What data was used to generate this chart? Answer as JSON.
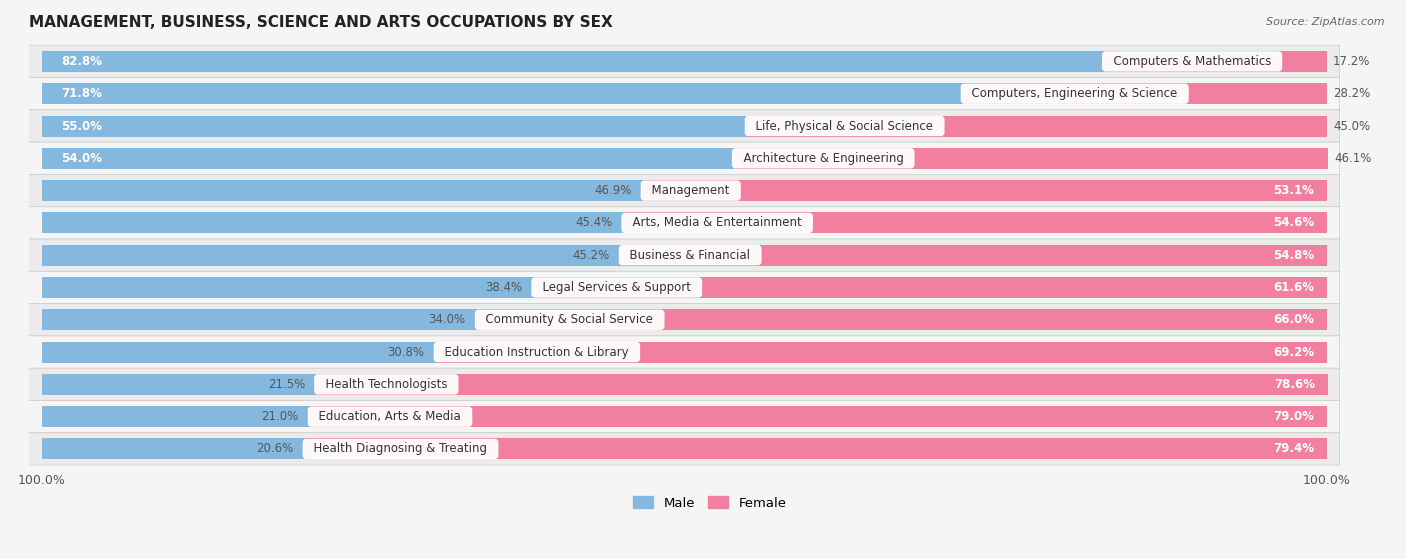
{
  "title": "MANAGEMENT, BUSINESS, SCIENCE AND ARTS OCCUPATIONS BY SEX",
  "source": "Source: ZipAtlas.com",
  "categories": [
    "Computers & Mathematics",
    "Computers, Engineering & Science",
    "Life, Physical & Social Science",
    "Architecture & Engineering",
    "Management",
    "Arts, Media & Entertainment",
    "Business & Financial",
    "Legal Services & Support",
    "Community & Social Service",
    "Education Instruction & Library",
    "Health Technologists",
    "Education, Arts & Media",
    "Health Diagnosing & Treating"
  ],
  "male_pct": [
    82.8,
    71.8,
    55.0,
    54.0,
    46.9,
    45.4,
    45.2,
    38.4,
    34.0,
    30.8,
    21.5,
    21.0,
    20.6
  ],
  "female_pct": [
    17.2,
    28.2,
    45.0,
    46.1,
    53.1,
    54.6,
    54.8,
    61.6,
    66.0,
    69.2,
    78.6,
    79.0,
    79.4
  ],
  "male_color": "#85b8de",
  "female_color": "#f07fa0",
  "row_bg_even": "#ebebeb",
  "row_bg_odd": "#f5f5f5",
  "legend_male": "Male",
  "legend_female": "Female",
  "bg_color": "#f5f5f5",
  "label_fontsize": 8.5,
  "cat_fontsize": 8.5,
  "title_fontsize": 11
}
